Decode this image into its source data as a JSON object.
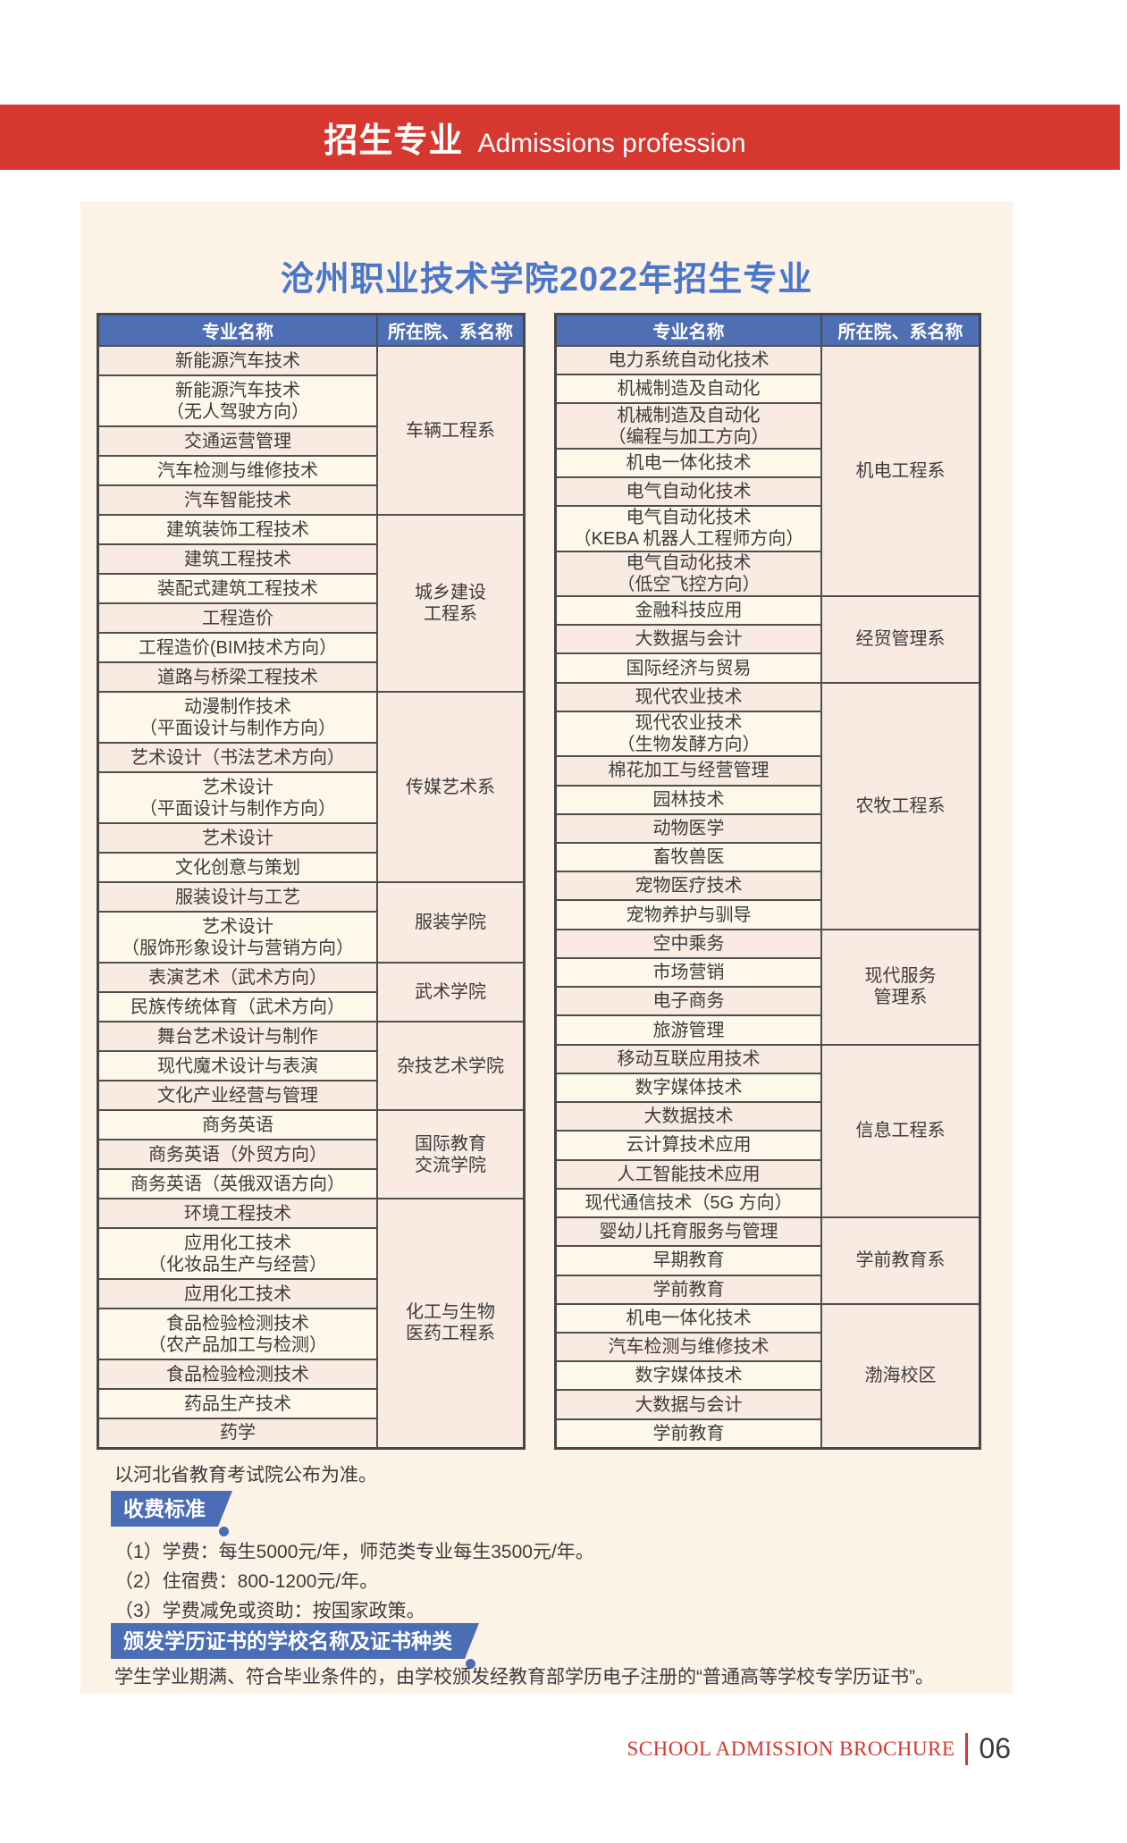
{
  "banner": {
    "title_zh": "招生专业",
    "title_en": "Admissions profession"
  },
  "page": {
    "title": "沧州职业技术学院2022年招生专业"
  },
  "table_headers": {
    "major": "专业名称",
    "department": "所在院、系名称"
  },
  "admission_tables": {
    "left": {
      "groups": [
        {
          "department": [
            "车辆工程系"
          ],
          "majors": [
            [
              "新能源汽车技术"
            ],
            [
              "新能源汽车技术",
              "（无人驾驶方向）"
            ],
            [
              "交通运营管理"
            ],
            [
              "汽车检测与维修技术"
            ],
            [
              "汽车智能技术"
            ]
          ]
        },
        {
          "department": [
            "城乡建设",
            "工程系"
          ],
          "majors": [
            [
              "建筑装饰工程技术"
            ],
            [
              "建筑工程技术"
            ],
            [
              "装配式建筑工程技术"
            ],
            [
              "工程造价"
            ],
            [
              "工程造价(BIM技术方向）"
            ],
            [
              "道路与桥梁工程技术"
            ]
          ]
        },
        {
          "department": [
            "传媒艺术系"
          ],
          "majors": [
            [
              "动漫制作技术",
              "（平面设计与制作方向）"
            ],
            [
              "艺术设计（书法艺术方向）"
            ],
            [
              "艺术设计",
              "（平面设计与制作方向）"
            ],
            [
              "艺术设计"
            ],
            [
              "文化创意与策划"
            ]
          ]
        },
        {
          "department": [
            "服装学院"
          ],
          "majors": [
            [
              "服装设计与工艺"
            ],
            [
              "艺术设计",
              "（服饰形象设计与营销方向）"
            ]
          ]
        },
        {
          "department": [
            "武术学院"
          ],
          "majors": [
            [
              "表演艺术（武术方向）"
            ],
            [
              "民族传统体育（武术方向）"
            ]
          ]
        },
        {
          "department": [
            "杂技艺术学院"
          ],
          "majors": [
            [
              "舞台艺术设计与制作"
            ],
            [
              "现代魔术设计与表演"
            ],
            [
              "文化产业经营与管理"
            ]
          ]
        },
        {
          "department": [
            "国际教育",
            "交流学院"
          ],
          "majors": [
            [
              "商务英语"
            ],
            [
              "商务英语（外贸方向）"
            ],
            [
              "商务英语（英俄双语方向）"
            ]
          ]
        },
        {
          "department": [
            "化工与生物",
            "医药工程系"
          ],
          "majors": [
            [
              "环境工程技术"
            ],
            [
              "应用化工技术",
              "（化妆品生产与经营）"
            ],
            [
              "应用化工技术"
            ],
            [
              "食品检验检测技术",
              "（农产品加工与检测）"
            ],
            [
              "食品检验检测技术"
            ],
            [
              "药品生产技术"
            ],
            [
              "药学"
            ]
          ]
        }
      ]
    },
    "right": {
      "groups": [
        {
          "department": [
            "机电工程系"
          ],
          "majors": [
            [
              "电力系统自动化技术"
            ],
            [
              "机械制造及自动化"
            ],
            [
              "机械制造及自动化",
              "（编程与加工方向）"
            ],
            [
              "机电一体化技术"
            ],
            [
              "电气自动化技术"
            ],
            [
              "电气自动化技术",
              "（KEBA 机器人工程师方向）"
            ],
            [
              "电气自动化技术",
              "（低空飞控方向）"
            ]
          ]
        },
        {
          "department": [
            "经贸管理系"
          ],
          "majors": [
            [
              "金融科技应用"
            ],
            [
              "大数据与会计"
            ],
            [
              "国际经济与贸易"
            ]
          ]
        },
        {
          "department": [
            "农牧工程系"
          ],
          "majors": [
            [
              "现代农业技术"
            ],
            [
              "现代农业技术",
              "（生物发酵方向）"
            ],
            [
              "棉花加工与经营管理"
            ],
            [
              "园林技术"
            ],
            [
              "动物医学"
            ],
            [
              "畜牧兽医"
            ],
            [
              "宠物医疗技术"
            ],
            [
              "宠物养护与驯导"
            ]
          ]
        },
        {
          "department": [
            "现代服务",
            "管理系"
          ],
          "majors": [
            [
              "空中乘务"
            ],
            [
              "市场营销"
            ],
            [
              "电子商务"
            ],
            [
              "旅游管理"
            ]
          ]
        },
        {
          "department": [
            "信息工程系"
          ],
          "majors": [
            [
              "移动互联应用技术"
            ],
            [
              "数字媒体技术"
            ],
            [
              "大数据技术"
            ],
            [
              "云计算技术应用"
            ],
            [
              "人工智能技术应用"
            ],
            [
              "现代通信技术（5G 方向）"
            ]
          ]
        },
        {
          "department": [
            "学前教育系"
          ],
          "majors": [
            [
              "婴幼儿托育服务与管理"
            ],
            [
              "早期教育"
            ],
            [
              "学前教育"
            ]
          ]
        },
        {
          "department": [
            "渤海校区"
          ],
          "majors": [
            [
              "机电一体化技术"
            ],
            [
              "汽车检测与维修技术"
            ],
            [
              "数字媒体技术"
            ],
            [
              "大数据与会计"
            ],
            [
              "学前教育"
            ]
          ]
        }
      ]
    }
  },
  "note": "以河北省教育考试院公布为准。",
  "fees": {
    "badge": "收费标准",
    "items": [
      "（1）学费：每生5000元/年，师范类专业每生3500元/年。",
      "（2）住宿费：800-1200元/年。",
      "（3）学费减免或资助：按国家政策。"
    ]
  },
  "certificate": {
    "badge": "颁发学历证书的学校名称及证书种类",
    "text": "学生学业期满、符合毕业条件的，由学校颁发经教育部学历电子注册的“普通高等学校专学历证书”。"
  },
  "footer": {
    "brochure_label": "SCHOOL ADMISSION BROCHURE",
    "page_number": "06"
  },
  "colors": {
    "banner_red": "#d6372e",
    "header_blue": "#4e6fb3",
    "title_blue": "#4b77cb",
    "badge_blue": "#4a6db5",
    "bg_cream": "#fdf2e6",
    "row_pink": "#f9eae2",
    "row_ivory": "#fdf8ea",
    "border_dark": "#4f4f4f"
  }
}
